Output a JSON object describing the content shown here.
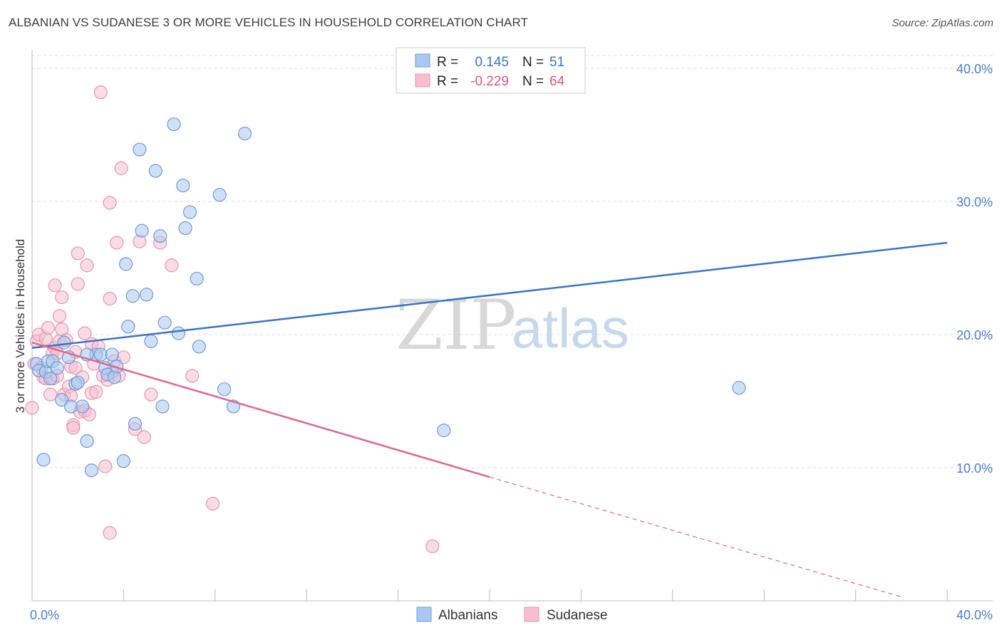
{
  "title": "ALBANIAN VS SUDANESE 3 OR MORE VEHICLES IN HOUSEHOLD CORRELATION CHART",
  "source": "Source: ZipAtlas.com",
  "watermark": {
    "zip": "ZIP",
    "atlas": "atlas"
  },
  "colors": {
    "blue_fill": "#aac8f0",
    "blue_stroke": "#6d9bd8",
    "blue_line": "#3a74c8",
    "pink_fill": "#f6bfd0",
    "pink_stroke": "#e895b0",
    "pink_line": "#e0668f",
    "grid": "#dddddd",
    "tick_text": "#4a7fd0"
  },
  "legend": {
    "rows": [
      {
        "r_label": "R =",
        "r_value": "0.145",
        "n_label": "N =",
        "n_value": "51"
      },
      {
        "r_label": "R =",
        "r_value": "-0.229",
        "n_label": "N =",
        "n_value": "64"
      }
    ]
  },
  "bottom_legend": [
    "Albanians",
    "Sudanese"
  ],
  "chart_data": {
    "type": "scatter",
    "title": "ALBANIAN VS SUDANESE 3 OR MORE VEHICLES IN HOUSEHOLD CORRELATION CHART",
    "xlabel": "",
    "ylabel": "3 or more Vehicles in Household",
    "xlim": [
      0,
      40
    ],
    "ylim": [
      0,
      40
    ],
    "x_tick_labels": [
      "0.0%",
      "40.0%"
    ],
    "y_ticks": [
      10,
      20,
      30,
      40
    ],
    "y_tick_labels": [
      "10.0%",
      "20.0%",
      "30.0%",
      "40.0%"
    ],
    "grid": true,
    "series": [
      {
        "name": "Albanians",
        "R": 0.145,
        "N": 51,
        "trend": {
          "x": [
            0,
            40
          ],
          "y": [
            19.0,
            26.9
          ]
        },
        "points": [
          [
            0.2,
            17.8
          ],
          [
            0.3,
            17.3
          ],
          [
            0.5,
            10.6
          ],
          [
            0.6,
            17.2
          ],
          [
            0.7,
            18.0
          ],
          [
            0.8,
            16.7
          ],
          [
            0.9,
            18.0
          ],
          [
            1.1,
            17.5
          ],
          [
            1.3,
            15.1
          ],
          [
            1.4,
            19.4
          ],
          [
            1.6,
            18.3
          ],
          [
            1.7,
            14.6
          ],
          [
            1.9,
            16.3
          ],
          [
            2.0,
            16.4
          ],
          [
            2.2,
            14.6
          ],
          [
            2.4,
            12.0
          ],
          [
            2.6,
            9.8
          ],
          [
            2.8,
            18.5
          ],
          [
            3.0,
            18.5
          ],
          [
            3.2,
            17.5
          ],
          [
            3.3,
            17.0
          ],
          [
            3.5,
            18.5
          ],
          [
            3.6,
            16.8
          ],
          [
            3.7,
            17.6
          ],
          [
            4.0,
            10.5
          ],
          [
            4.1,
            25.3
          ],
          [
            4.2,
            20.6
          ],
          [
            4.4,
            22.9
          ],
          [
            4.5,
            13.3
          ],
          [
            4.7,
            33.9
          ],
          [
            4.8,
            27.8
          ],
          [
            5.0,
            23.0
          ],
          [
            5.2,
            19.5
          ],
          [
            5.4,
            32.3
          ],
          [
            5.6,
            27.4
          ],
          [
            5.7,
            14.6
          ],
          [
            5.8,
            20.9
          ],
          [
            6.2,
            35.8
          ],
          [
            6.4,
            20.1
          ],
          [
            6.6,
            31.2
          ],
          [
            6.7,
            28.0
          ],
          [
            6.9,
            29.2
          ],
          [
            7.2,
            24.2
          ],
          [
            7.3,
            19.1
          ],
          [
            8.2,
            30.5
          ],
          [
            8.4,
            15.9
          ],
          [
            8.8,
            14.6
          ],
          [
            9.3,
            35.1
          ],
          [
            18.0,
            12.8
          ],
          [
            30.9,
            16.0
          ],
          [
            2.4,
            18.5
          ]
        ]
      },
      {
        "name": "Sudanese",
        "R": -0.229,
        "N": 64,
        "trend": {
          "x": [
            0,
            20
          ],
          "y": [
            19.4,
            9.3
          ]
        },
        "trend_dashed": {
          "x": [
            20,
            38
          ],
          "y": [
            9.3,
            0.3
          ]
        },
        "points": [
          [
            0.0,
            14.5
          ],
          [
            0.1,
            17.8
          ],
          [
            0.2,
            19.5
          ],
          [
            0.3,
            20.0
          ],
          [
            0.4,
            17.5
          ],
          [
            0.5,
            16.8
          ],
          [
            0.6,
            19.7
          ],
          [
            0.6,
            16.7
          ],
          [
            0.7,
            20.5
          ],
          [
            0.8,
            15.5
          ],
          [
            0.9,
            18.6
          ],
          [
            0.9,
            16.7
          ],
          [
            1.0,
            19.0
          ],
          [
            1.0,
            23.7
          ],
          [
            1.1,
            16.9
          ],
          [
            1.2,
            21.4
          ],
          [
            1.2,
            19.5
          ],
          [
            1.3,
            22.8
          ],
          [
            1.3,
            20.4
          ],
          [
            1.4,
            15.5
          ],
          [
            1.5,
            19.6
          ],
          [
            1.6,
            16.1
          ],
          [
            1.7,
            15.4
          ],
          [
            1.7,
            17.6
          ],
          [
            1.8,
            13.2
          ],
          [
            1.8,
            13.0
          ],
          [
            1.9,
            17.5
          ],
          [
            2.0,
            26.1
          ],
          [
            2.0,
            23.8
          ],
          [
            2.1,
            14.2
          ],
          [
            2.2,
            16.8
          ],
          [
            2.3,
            14.3
          ],
          [
            2.4,
            25.2
          ],
          [
            2.5,
            14.0
          ],
          [
            2.6,
            19.3
          ],
          [
            2.6,
            15.6
          ],
          [
            2.7,
            17.8
          ],
          [
            2.8,
            15.7
          ],
          [
            2.9,
            19.1
          ],
          [
            3.0,
            38.2
          ],
          [
            3.1,
            16.9
          ],
          [
            3.2,
            10.1
          ],
          [
            3.3,
            16.6
          ],
          [
            3.4,
            22.7
          ],
          [
            3.4,
            29.9
          ],
          [
            3.4,
            5.1
          ],
          [
            3.6,
            18.0
          ],
          [
            3.7,
            26.9
          ],
          [
            3.8,
            16.9
          ],
          [
            3.9,
            32.5
          ],
          [
            4.0,
            18.3
          ],
          [
            4.5,
            12.9
          ],
          [
            4.7,
            27.0
          ],
          [
            4.9,
            12.3
          ],
          [
            5.2,
            15.5
          ],
          [
            5.6,
            26.9
          ],
          [
            6.1,
            25.2
          ],
          [
            7.0,
            16.9
          ],
          [
            7.9,
            7.3
          ],
          [
            17.5,
            4.1
          ],
          [
            1.1,
            18.6
          ],
          [
            1.9,
            18.7
          ],
          [
            3.5,
            17.2
          ],
          [
            2.3,
            20.1
          ]
        ]
      }
    ]
  }
}
